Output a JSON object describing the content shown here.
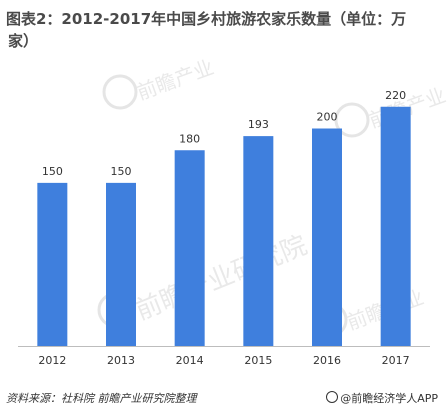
{
  "title_line1": "图表2：2012-2017年中国乡村旅游农家乐数量（单位：万",
  "title_line2": "家）",
  "chart_data": {
    "type": "bar",
    "title": "图表2：2012-2017年中国乡村旅游农家乐数量（单位：万家）",
    "categories": [
      "2012",
      "2013",
      "2014",
      "2015",
      "2016",
      "2017"
    ],
    "values": [
      150,
      150,
      180,
      193,
      200,
      220
    ],
    "ylim": [
      0,
      240
    ],
    "grid": false,
    "bar_color": "#3f7fdd",
    "xlabel": "",
    "ylabel": ""
  },
  "watermark": {
    "brand": "前瞻产业研究院",
    "brand_short": "前瞻产业"
  },
  "footer": {
    "source": "资料来源：社科院 前瞻产业研究院整理",
    "credit": "@前瞻经济学人APP"
  }
}
